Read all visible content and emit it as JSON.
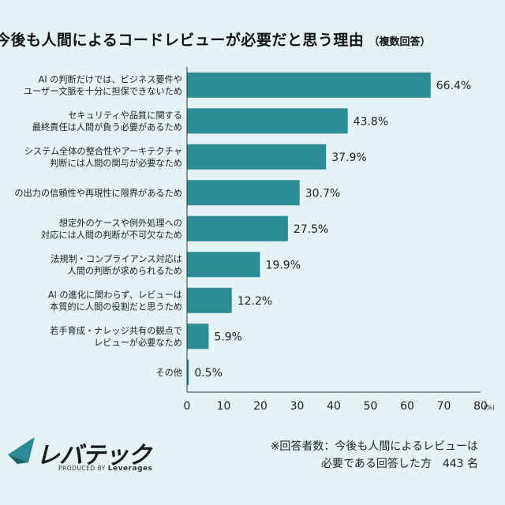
{
  "title": "今後も人間によるコードレビューが必要だと思う理由",
  "title_note": "（複数回答）",
  "chart_data": {
    "type": "bar",
    "orientation": "horizontal",
    "categories": [
      [
        "AI の判断だけでは、ビジネス要件や",
        "ユーザー文脈を十分に担保できないため"
      ],
      [
        "セキュリティや品質に関する",
        "最終責任は人間が負う必要があるため"
      ],
      [
        "システム全体の整合性やアーキテクチャ",
        "判断には人間の関与が必要なため"
      ],
      [
        "の出力の信頼性や再現性に限界があるため"
      ],
      [
        "想定外のケースや例外処理への",
        "対応には人間の判断が不可欠なため"
      ],
      [
        "法規制・コンプライアンス対応は",
        "人間の判断が求められるため"
      ],
      [
        "AI の進化に関わらず、レビューは",
        "本質的に人間の役割だと思うため"
      ],
      [
        "若手育成・ナレッジ共有の観点で",
        "レビューが必要なため"
      ],
      [
        "その他"
      ]
    ],
    "values": [
      66.4,
      43.8,
      37.9,
      30.7,
      27.5,
      19.9,
      12.2,
      5.9,
      0.5
    ],
    "value_labels": [
      "66.4%",
      "43.8%",
      "37.9%",
      "30.7%",
      "27.5%",
      "19.9%",
      "12.2%",
      "5.9%",
      "0.5%"
    ],
    "xlim": [
      0,
      80
    ],
    "xticks": [
      "0",
      "10",
      "20",
      "30",
      "40",
      "50",
      "60",
      "70",
      "80"
    ],
    "x_unit": "(%)",
    "bar_color": "#2b8c96",
    "grid": false
  },
  "footer": {
    "brand": "レバテック",
    "produced_by": "PRODUCED BY",
    "produced_by_company": "Leverages",
    "note_line1": "※回答者数：今後も人間によるレビューは",
    "note_line2": "必要である回答した方　443 名"
  }
}
